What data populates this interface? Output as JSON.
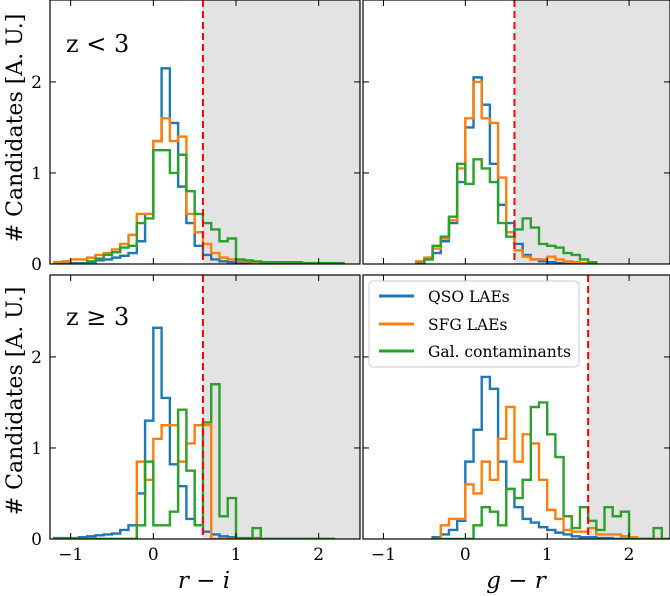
{
  "figure": {
    "ylabel": "# Candidates [A. U.]",
    "x_variables": [
      "r − i",
      "g − r"
    ],
    "rows": [
      "z < 3",
      "z ≥ 3"
    ]
  },
  "colors": {
    "qso": "#1f77b4",
    "sfg": "#ff7f0e",
    "gal": "#2ca02c",
    "cut": "#ff0000",
    "shade": "#e3e3e3"
  },
  "chart_data": [
    {
      "type": "histogram",
      "panel": "top-left",
      "annotation": "z < 3",
      "xlabel": "",
      "ylabel": "# Candidates [A. U.]",
      "xlim": [
        -1.25,
        2.5
      ],
      "ylim": [
        0,
        2.9
      ],
      "xticks": [
        -1,
        0,
        1,
        2
      ],
      "yticks": [
        0,
        1,
        2
      ],
      "cut": 0.6,
      "shade_side": "right",
      "edges": [
        -1.2,
        -1.1,
        -1.0,
        -0.9,
        -0.8,
        -0.7,
        -0.6,
        -0.5,
        -0.4,
        -0.3,
        -0.2,
        -0.1,
        0.0,
        0.1,
        0.2,
        0.3,
        0.4,
        0.5,
        0.6,
        0.7,
        0.8,
        0.9,
        1.0,
        1.1,
        1.2,
        1.3,
        1.4,
        1.5,
        1.6,
        1.7,
        1.8,
        1.9,
        2.0,
        2.1,
        2.2,
        2.3
      ],
      "series": [
        {
          "name": "QSO LAEs",
          "color": "#1f77b4",
          "values": [
            0.0,
            0.0,
            0.01,
            0.01,
            0.02,
            0.04,
            0.05,
            0.07,
            0.09,
            0.12,
            0.25,
            0.55,
            1.35,
            2.15,
            1.55,
            0.85,
            0.45,
            0.2,
            0.1,
            0.05,
            0.03,
            0.02,
            0.01,
            0.01,
            0.0,
            0.0,
            0.0,
            0.0,
            0.0,
            0.0,
            0.0,
            0.0,
            0.0,
            0.0,
            0.0
          ]
        },
        {
          "name": "SFG LAEs",
          "color": "#ff7f0e",
          "values": [
            0.02,
            0.03,
            0.05,
            0.05,
            0.07,
            0.1,
            0.12,
            0.16,
            0.22,
            0.32,
            0.55,
            0.55,
            1.35,
            1.6,
            1.35,
            1.4,
            0.55,
            0.35,
            0.22,
            0.12,
            0.07,
            0.05,
            0.03,
            0.03,
            0.02,
            0.02,
            0.01,
            0.01,
            0.0,
            0.0,
            0.0,
            0.0,
            0.0,
            0.0,
            0.0
          ]
        },
        {
          "name": "Gal. contaminants",
          "color": "#2ca02c",
          "values": [
            0.0,
            0.0,
            0.0,
            0.0,
            0.03,
            0.06,
            0.1,
            0.13,
            0.18,
            0.2,
            0.45,
            0.5,
            1.25,
            1.25,
            1.0,
            1.2,
            0.8,
            0.55,
            0.45,
            0.38,
            0.25,
            0.28,
            0.05,
            0.04,
            0.03,
            0.02,
            0.02,
            0.02,
            0.02,
            0.02,
            0.01,
            0.01,
            0.01,
            0.01,
            0.01
          ]
        }
      ]
    },
    {
      "type": "histogram",
      "panel": "top-right",
      "annotation": "",
      "xlabel": "",
      "ylabel": "",
      "xlim": [
        -1.25,
        2.5
      ],
      "ylim": [
        0,
        2.9
      ],
      "xticks": [
        -1,
        0,
        1,
        2
      ],
      "yticks": [
        0,
        1,
        2
      ],
      "cut": 0.6,
      "shade_side": "right",
      "edges": [
        -0.6,
        -0.5,
        -0.4,
        -0.3,
        -0.2,
        -0.1,
        0.0,
        0.1,
        0.2,
        0.3,
        0.4,
        0.5,
        0.6,
        0.7,
        0.8,
        0.9,
        1.0,
        1.1,
        1.2,
        1.3,
        1.4,
        1.5,
        1.6
      ],
      "series": [
        {
          "name": "QSO LAEs",
          "color": "#1f77b4",
          "values": [
            0.02,
            0.05,
            0.12,
            0.25,
            0.45,
            0.9,
            1.5,
            2.05,
            1.75,
            1.1,
            0.65,
            0.45,
            0.22,
            0.1,
            0.05,
            0.03,
            0.02,
            0.01,
            0.0,
            0.0,
            0.0,
            0.0
          ]
        },
        {
          "name": "SFG LAEs",
          "color": "#ff7f0e",
          "values": [
            0.03,
            0.07,
            0.17,
            0.28,
            0.48,
            1.05,
            1.6,
            2.0,
            1.6,
            1.55,
            0.95,
            0.35,
            0.15,
            0.08,
            0.05,
            0.05,
            0.08,
            0.05,
            0.03,
            0.02,
            0.01,
            0.0
          ]
        },
        {
          "name": "Gal. contaminants",
          "color": "#2ca02c",
          "values": [
            0.0,
            0.05,
            0.2,
            0.3,
            0.52,
            1.1,
            0.88,
            1.15,
            1.05,
            0.9,
            0.45,
            0.3,
            0.38,
            0.5,
            0.4,
            0.22,
            0.2,
            0.18,
            0.12,
            0.1,
            0.05,
            0.02
          ]
        }
      ]
    },
    {
      "type": "histogram",
      "panel": "bottom-left",
      "annotation": "z ≥ 3",
      "xlabel": "r − i",
      "ylabel": "# Candidates [A. U.]",
      "xlim": [
        -1.25,
        2.5
      ],
      "ylim": [
        0,
        2.9
      ],
      "xticks": [
        -1,
        0,
        1,
        2
      ],
      "yticks": [
        0,
        1,
        2
      ],
      "cut": 0.6,
      "shade_side": "right",
      "edges": [
        -1.2,
        -1.1,
        -1.0,
        -0.9,
        -0.8,
        -0.7,
        -0.6,
        -0.5,
        -0.4,
        -0.3,
        -0.2,
        -0.1,
        0.0,
        0.1,
        0.2,
        0.3,
        0.4,
        0.5,
        0.6,
        0.7,
        0.8,
        0.9,
        1.0,
        1.1,
        1.2,
        1.3,
        1.4,
        1.5,
        1.6,
        1.7,
        1.8,
        1.9,
        2.0,
        2.1,
        2.2
      ],
      "series": [
        {
          "name": "QSO LAEs",
          "color": "#1f77b4",
          "values": [
            0.01,
            0.01,
            0.01,
            0.02,
            0.03,
            0.04,
            0.05,
            0.06,
            0.1,
            0.15,
            0.5,
            1.3,
            2.32,
            1.55,
            0.82,
            0.58,
            0.22,
            0.15,
            0.08,
            0.05,
            0.03,
            0.02,
            0.01,
            0.01,
            0.01,
            0.0,
            0.0,
            0.0,
            0.0,
            0.0,
            0.0,
            0.0,
            0.0,
            0.0
          ]
        },
        {
          "name": "SFG LAEs",
          "color": "#ff7f0e",
          "values": [
            0.0,
            0.0,
            0.0,
            0.0,
            0.0,
            0.0,
            0.0,
            0.0,
            0.0,
            0.0,
            0.85,
            0.65,
            1.1,
            1.25,
            1.25,
            0.85,
            1.05,
            1.25,
            1.25,
            0.0,
            0.0,
            0.0,
            0.0,
            0.0,
            0.0,
            0.0,
            0.0,
            0.0,
            0.0,
            0.0,
            0.0,
            0.0,
            0.0,
            0.0
          ]
        },
        {
          "name": "Gal. contaminants",
          "color": "#2ca02c",
          "values": [
            0.0,
            0.0,
            0.0,
            0.0,
            0.0,
            0.0,
            0.0,
            0.0,
            0.0,
            0.0,
            0.15,
            0.85,
            0.15,
            0.15,
            0.3,
            1.42,
            0.75,
            0.15,
            1.28,
            1.7,
            0.25,
            0.45,
            0.0,
            0.0,
            0.12,
            0.0,
            0.0,
            0.0,
            0.0,
            0.0,
            0.0,
            0.0,
            0.0,
            0.0
          ]
        }
      ]
    },
    {
      "type": "histogram",
      "panel": "bottom-right",
      "annotation": "",
      "xlabel": "g − r",
      "ylabel": "",
      "xlim": [
        -1.25,
        2.5
      ],
      "ylim": [
        0,
        2.9
      ],
      "xticks": [
        -1,
        0,
        1,
        2
      ],
      "yticks": [
        0,
        1,
        2
      ],
      "cut": 1.5,
      "shade_side": "right",
      "edges": [
        -0.4,
        -0.3,
        -0.2,
        -0.1,
        0.0,
        0.1,
        0.2,
        0.3,
        0.4,
        0.5,
        0.6,
        0.7,
        0.8,
        0.9,
        1.0,
        1.1,
        1.2,
        1.3,
        1.4,
        1.5,
        1.6,
        1.7,
        1.8,
        1.9,
        2.0,
        2.1,
        2.2,
        2.3,
        2.4,
        2.5
      ],
      "series": [
        {
          "name": "QSO LAEs",
          "color": "#1f77b4",
          "values": [
            0.02,
            0.05,
            0.1,
            0.2,
            0.85,
            1.2,
            1.78,
            1.65,
            0.85,
            0.55,
            0.35,
            0.22,
            0.18,
            0.13,
            0.1,
            0.07,
            0.05,
            0.03,
            0.02,
            0.02,
            0.01,
            0.01,
            0.0,
            0.0,
            0.0,
            0.0,
            0.0,
            0.0,
            0.0
          ]
        },
        {
          "name": "SFG LAEs",
          "color": "#ff7f0e",
          "values": [
            0.0,
            0.15,
            0.22,
            0.22,
            0.6,
            0.5,
            0.85,
            0.65,
            1.1,
            1.45,
            0.85,
            1.15,
            1.05,
            0.65,
            0.32,
            0.22,
            0.1,
            0.08,
            0.08,
            0.12,
            0.05,
            0.05,
            0.05,
            0.03,
            0.02,
            0.0,
            0.0,
            0.0,
            0.0
          ]
        },
        {
          "name": "Gal. contaminants",
          "color": "#2ca02c",
          "values": [
            0.0,
            0.0,
            0.0,
            0.0,
            0.0,
            0.15,
            0.35,
            0.3,
            0.15,
            0.55,
            0.45,
            0.65,
            1.45,
            1.5,
            1.15,
            0.9,
            0.25,
            0.12,
            0.35,
            0.2,
            0.1,
            0.35,
            0.25,
            0.3,
            0.0,
            0.0,
            0.0,
            0.12,
            0.0
          ]
        }
      ]
    }
  ]
}
